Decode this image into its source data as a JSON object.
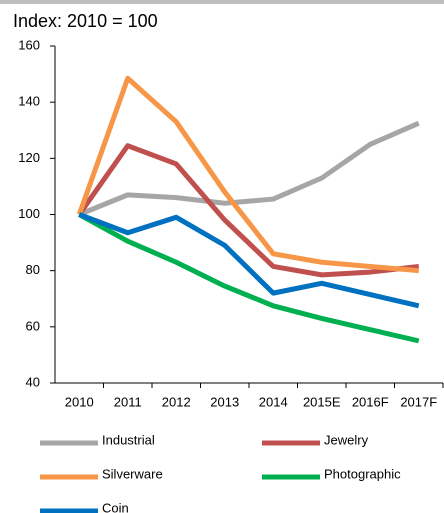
{
  "chart_data": {
    "type": "line",
    "title": "Index: 2010 = 100",
    "categories": [
      "2010",
      "2011",
      "2012",
      "2013",
      "2014",
      "2015E",
      "2016F",
      "2017F"
    ],
    "series": [
      {
        "name": "Industrial",
        "color": "#a6a6a6",
        "values": [
          100,
          107,
          106,
          104,
          105.5,
          113,
          125,
          132.5
        ]
      },
      {
        "name": "Jewelry",
        "color": "#c0504d",
        "values": [
          100,
          124.5,
          118,
          98,
          81.5,
          78.5,
          79.5,
          81.5
        ]
      },
      {
        "name": "Silverware",
        "color": "#f79646",
        "values": [
          100,
          148.5,
          133,
          108,
          86,
          83,
          81.5,
          80
        ]
      },
      {
        "name": "Photographic",
        "color": "#00b050",
        "values": [
          100,
          90.5,
          83,
          74.5,
          67.5,
          63,
          59,
          55
        ]
      },
      {
        "name": "Coin",
        "color": "#0070c0",
        "values": [
          100,
          93.5,
          99,
          89,
          72,
          75.5,
          71.5,
          67.5
        ]
      }
    ],
    "ylim": [
      40,
      160
    ],
    "yticks": [
      40,
      60,
      80,
      100,
      120,
      140,
      160
    ],
    "grid": false,
    "legend": "bottom"
  }
}
